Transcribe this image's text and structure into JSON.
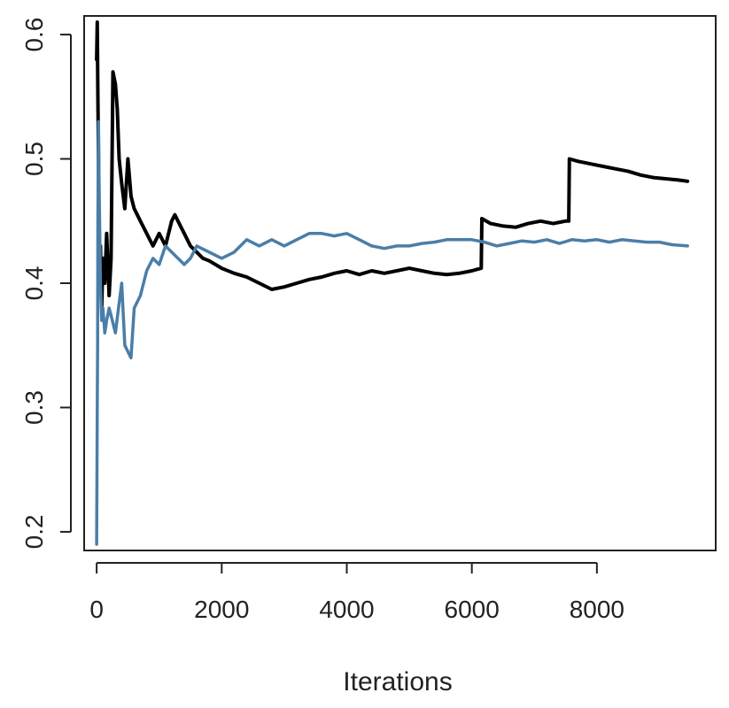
{
  "chart_data": {
    "type": "line",
    "title": "",
    "xlabel": "Iterations",
    "ylabel": "",
    "xlim": [
      -200,
      9900
    ],
    "ylim": [
      0.185,
      0.615
    ],
    "x_ticks": [
      0,
      2000,
      4000,
      6000,
      8000
    ],
    "x_tick_labels": [
      "0",
      "2000",
      "4000",
      "6000",
      "8000"
    ],
    "y_ticks": [
      0.2,
      0.3,
      0.4,
      0.5,
      0.6
    ],
    "y_tick_labels": [
      "0.2",
      "0.3",
      "0.4",
      "0.5",
      "0.6"
    ],
    "grid": false,
    "legend": "none",
    "series": [
      {
        "color": "#000000",
        "x": [
          0,
          10,
          20,
          30,
          40,
          60,
          80,
          100,
          130,
          160,
          200,
          230,
          260,
          300,
          330,
          360,
          400,
          450,
          500,
          550,
          600,
          700,
          800,
          900,
          1000,
          1100,
          1200,
          1250,
          1300,
          1400,
          1500,
          1600,
          1700,
          1800,
          2000,
          2200,
          2400,
          2600,
          2800,
          3000,
          3200,
          3400,
          3600,
          3800,
          4000,
          4200,
          4400,
          4600,
          4800,
          5000,
          5200,
          5400,
          5600,
          5800,
          6000,
          6150,
          6160,
          6300,
          6500,
          6700,
          6900,
          7100,
          7300,
          7500,
          7550,
          7560,
          7700,
          7900,
          8100,
          8300,
          8500,
          8700,
          8900,
          9100,
          9300,
          9450
        ],
        "y": [
          0.58,
          0.61,
          0.55,
          0.5,
          0.4,
          0.43,
          0.38,
          0.42,
          0.4,
          0.44,
          0.39,
          0.42,
          0.57,
          0.56,
          0.54,
          0.5,
          0.48,
          0.46,
          0.5,
          0.47,
          0.46,
          0.45,
          0.44,
          0.43,
          0.44,
          0.43,
          0.45,
          0.455,
          0.45,
          0.44,
          0.43,
          0.425,
          0.42,
          0.418,
          0.412,
          0.408,
          0.405,
          0.4,
          0.395,
          0.397,
          0.4,
          0.403,
          0.405,
          0.408,
          0.41,
          0.407,
          0.41,
          0.408,
          0.41,
          0.412,
          0.41,
          0.408,
          0.407,
          0.408,
          0.41,
          0.412,
          0.452,
          0.448,
          0.446,
          0.445,
          0.448,
          0.45,
          0.448,
          0.45,
          0.45,
          0.5,
          0.498,
          0.496,
          0.494,
          0.492,
          0.49,
          0.487,
          0.485,
          0.484,
          0.483,
          0.482
        ]
      },
      {
        "color": "#4a7ea8",
        "x": [
          0,
          5,
          10,
          15,
          20,
          30,
          40,
          60,
          80,
          100,
          130,
          160,
          200,
          250,
          300,
          350,
          400,
          450,
          500,
          550,
          600,
          700,
          800,
          900,
          1000,
          1100,
          1200,
          1300,
          1400,
          1500,
          1600,
          1800,
          2000,
          2200,
          2400,
          2600,
          2800,
          3000,
          3200,
          3400,
          3600,
          3800,
          4000,
          4200,
          4400,
          4600,
          4800,
          5000,
          5200,
          5400,
          5600,
          5800,
          6000,
          6200,
          6400,
          6600,
          6800,
          7000,
          7200,
          7400,
          7600,
          7800,
          8000,
          8200,
          8400,
          8600,
          8800,
          9000,
          9200,
          9450
        ],
        "y": [
          0.19,
          0.25,
          0.3,
          0.35,
          0.45,
          0.53,
          0.48,
          0.4,
          0.37,
          0.38,
          0.36,
          0.37,
          0.38,
          0.37,
          0.36,
          0.38,
          0.4,
          0.35,
          0.345,
          0.34,
          0.38,
          0.39,
          0.41,
          0.42,
          0.415,
          0.43,
          0.425,
          0.42,
          0.415,
          0.42,
          0.43,
          0.425,
          0.42,
          0.425,
          0.435,
          0.43,
          0.435,
          0.43,
          0.435,
          0.44,
          0.44,
          0.438,
          0.44,
          0.435,
          0.43,
          0.428,
          0.43,
          0.43,
          0.432,
          0.433,
          0.435,
          0.435,
          0.435,
          0.433,
          0.43,
          0.432,
          0.434,
          0.433,
          0.435,
          0.432,
          0.435,
          0.434,
          0.435,
          0.433,
          0.435,
          0.434,
          0.433,
          0.433,
          0.431,
          0.43
        ]
      }
    ]
  }
}
